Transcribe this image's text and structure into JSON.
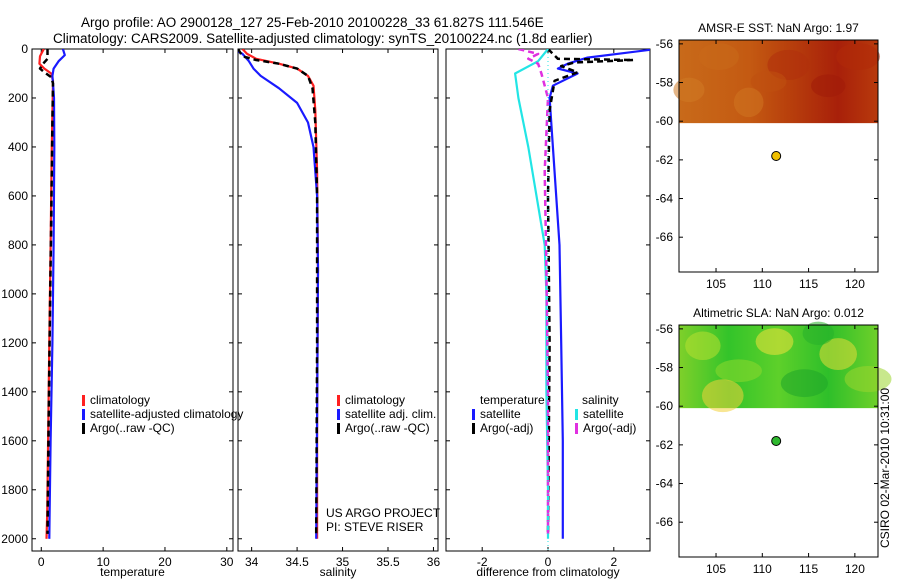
{
  "header": {
    "line1": "Argo profile: AO 2900128_127 25-Feb-2010 20100228_33 61.827S 111.546E",
    "line2": "Climatology: CARS2009. Satellite-adjusted climatology: synTS_20100224.nc (1.8d earlier)"
  },
  "side_stamp": "CSIRO 02-Mar-2010 10:31:00",
  "colors": {
    "climatology": "#ff2020",
    "satellite": "#1a1aff",
    "argo": "#000000",
    "sal_satellite": "#22e5e5",
    "sal_argo": "#e030e0",
    "marker_sst": "#f0c000",
    "marker_sla": "#2fb82f"
  },
  "chart_data": [
    {
      "id": "temperature",
      "type": "line",
      "xlabel": "temperature",
      "xlim": [
        -1.5,
        31
      ],
      "xticks": [
        0,
        10,
        20,
        30
      ],
      "xticklabels": [
        "0",
        "10",
        "20",
        "30"
      ],
      "ylim": [
        0,
        2050
      ],
      "yticks": [
        0,
        200,
        400,
        600,
        800,
        1000,
        1200,
        1400,
        1600,
        1800,
        2000
      ],
      "yticklabels": [
        "0",
        "200",
        "400",
        "600",
        "800",
        "1000",
        "1200",
        "1400",
        "1600",
        "1800",
        "2000"
      ],
      "legend": [
        "climatology",
        "satellite-adjusted climatology",
        "Argo(..raw -QC)"
      ],
      "series": [
        {
          "name": "climatology",
          "color": "red",
          "dash": false,
          "x": [
            0.4,
            -0.2,
            -0.3,
            0.5,
            1.6,
            1.9,
            1.85,
            1.7,
            1.5,
            1.3,
            1.1,
            0.95,
            0.85
          ],
          "y": [
            0,
            30,
            60,
            80,
            100,
            130,
            200,
            400,
            800,
            1200,
            1600,
            1900,
            2000
          ]
        },
        {
          "name": "satellite-adjusted climatology",
          "color": "blue",
          "dash": false,
          "x": [
            3.5,
            3.8,
            2.8,
            2.0,
            1.8,
            1.9,
            2.05,
            2.1,
            2.0,
            1.8,
            1.5,
            1.35,
            1.3
          ],
          "y": [
            0,
            25,
            50,
            80,
            110,
            140,
            200,
            400,
            800,
            1200,
            1600,
            1900,
            2000
          ]
        },
        {
          "name": "Argo(..raw -QC)",
          "color": "black",
          "dash": true,
          "x": [
            1.0,
            1.0,
            0.3,
            -0.2,
            0.5,
            1.6,
            1.9,
            1.8,
            1.6,
            1.4,
            1.2,
            1.05,
            1.0
          ],
          "y": [
            0,
            40,
            60,
            80,
            95,
            115,
            140,
            300,
            700,
            1100,
            1500,
            1850,
            1980
          ]
        }
      ]
    },
    {
      "id": "salinity",
      "type": "line",
      "xlabel": "salinity",
      "xlim": [
        33.85,
        36.05
      ],
      "xticks": [
        34,
        34.5,
        35,
        35.5,
        36
      ],
      "xticklabels": [
        "34",
        "34.5",
        "35",
        "35.5",
        "36"
      ],
      "ylim": [
        0,
        2050
      ],
      "legend": [
        "climatology",
        "satellite adj. clim.",
        "Argo(..raw -QC)"
      ],
      "annotation": [
        "US ARGO PROJECT",
        "PI: STEVE RISER"
      ],
      "series": [
        {
          "name": "climatology",
          "color": "red",
          "dash": false,
          "x": [
            33.9,
            33.95,
            34.05,
            34.3,
            34.5,
            34.62,
            34.68,
            34.7,
            34.72,
            34.73,
            34.72,
            34.72
          ],
          "y": [
            0,
            20,
            40,
            60,
            80,
            110,
            150,
            250,
            500,
            900,
            1500,
            2000
          ]
        },
        {
          "name": "satellite adj. clim.",
          "color": "blue",
          "dash": false,
          "x": [
            33.8,
            33.9,
            33.97,
            34.02,
            34.1,
            34.3,
            34.5,
            34.62,
            34.68,
            34.72,
            34.73,
            34.72,
            34.71
          ],
          "y": [
            0,
            20,
            50,
            80,
            110,
            160,
            220,
            300,
            400,
            600,
            900,
            1500,
            2000
          ]
        },
        {
          "name": "Argo(..raw -QC)",
          "color": "black",
          "dash": true,
          "x": [
            33.85,
            33.9,
            34.05,
            34.3,
            34.5,
            34.62,
            34.67,
            34.7,
            34.72,
            34.72,
            34.71
          ],
          "y": [
            0,
            30,
            45,
            60,
            80,
            110,
            160,
            300,
            600,
            1200,
            1980
          ]
        }
      ]
    },
    {
      "id": "difference",
      "type": "line",
      "xlabel": "difference from climatology",
      "xlim": [
        -3.1,
        3.1
      ],
      "xticks": [
        -2,
        0,
        2
      ],
      "xticklabels": [
        "-2",
        "0",
        "2"
      ],
      "ylim": [
        0,
        2050
      ],
      "legend_groups": [
        {
          "title": "temperature",
          "items": [
            "satellite",
            "Argo(-adj)"
          ]
        },
        {
          "title": "salinity",
          "items": [
            "satellite",
            "Argo(-adj)"
          ]
        }
      ],
      "series": [
        {
          "name": "temperature satellite",
          "color": "blue",
          "dash": false,
          "x": [
            3.3,
            1.2,
            0.6,
            0.3,
            0.9,
            0.15,
            0.05,
            0.15,
            0.35,
            0.4,
            0.45,
            0.45
          ],
          "y": [
            0,
            35,
            60,
            80,
            100,
            150,
            200,
            400,
            800,
            1200,
            1600,
            2000
          ]
        },
        {
          "name": "temperature Argo(-adj)",
          "color": "black",
          "dash": true,
          "x": [
            0.0,
            0.3,
            2.6,
            0.8,
            0.4,
            0.9,
            0.2,
            0.05,
            0.0,
            0.05,
            0.0
          ],
          "y": [
            0,
            40,
            45,
            55,
            70,
            95,
            130,
            250,
            600,
            1200,
            1980
          ]
        },
        {
          "name": "salinity satellite",
          "color": "cyan",
          "dash": false,
          "x": [
            0.0,
            -0.3,
            -1.0,
            -0.9,
            -0.6,
            -0.35,
            -0.1,
            -0.05,
            -0.05,
            0.0,
            0.0
          ],
          "y": [
            0,
            50,
            100,
            200,
            400,
            600,
            800,
            1000,
            1400,
            1800,
            2000
          ]
        },
        {
          "name": "salinity Argo(-adj)",
          "color": "magenta",
          "dash": true,
          "x": [
            -0.9,
            -0.3,
            -0.6,
            -0.3,
            -0.2,
            0.0,
            -0.1,
            -0.05,
            0.0,
            0.0
          ],
          "y": [
            0,
            20,
            40,
            60,
            100,
            200,
            500,
            900,
            1400,
            1980
          ]
        }
      ]
    },
    {
      "id": "sst_map",
      "type": "heatmap",
      "title": "AMSR-E SST: NaN Argo: 1.97",
      "xlim": [
        101,
        122.5
      ],
      "ylim": [
        -67.8,
        -55.8
      ],
      "xticks": [
        105,
        110,
        115,
        120
      ],
      "yticks": [
        -56,
        -58,
        -60,
        -62,
        -64,
        -66
      ],
      "data_top": -56,
      "data_bottom": -60.1,
      "marker": {
        "x": 111.5,
        "y": -61.8
      }
    },
    {
      "id": "sla_map",
      "type": "heatmap",
      "title": "Altimetric SLA: NaN Argo: 0.012",
      "xlim": [
        101,
        122.5
      ],
      "ylim": [
        -67.8,
        -55.8
      ],
      "xticks": [
        105,
        110,
        115,
        120
      ],
      "yticks": [
        -56,
        -58,
        -60,
        -62,
        -64,
        -66
      ],
      "data_top": -56,
      "data_bottom": -60.1,
      "marker": {
        "x": 111.5,
        "y": -61.8
      }
    }
  ]
}
